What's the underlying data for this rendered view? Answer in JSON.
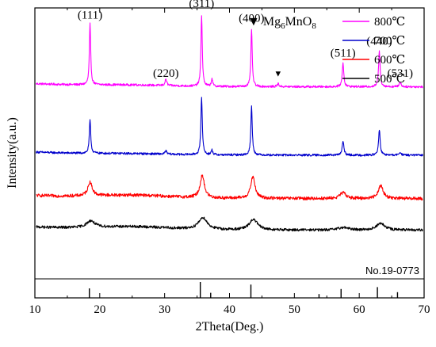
{
  "chart_data": {
    "type": "line",
    "title": "",
    "xlabel": "2Theta(Deg.)",
    "ylabel": "Intensity(a.u.)",
    "xlim": [
      10,
      70
    ],
    "xticks": [
      10,
      20,
      30,
      40,
      50,
      60,
      70
    ],
    "xtick_labels": [
      "10",
      "20",
      "30",
      "40",
      "50",
      "60",
      "70"
    ],
    "grid": false,
    "legend_position": "top-right",
    "series": [
      {
        "name": "800℃",
        "color": "#ff00ff",
        "baseline": 0.7,
        "noise": 0.004,
        "hump": 0.004,
        "peaks": [
          {
            "x": 18.5,
            "height": 0.232,
            "width": 0.12
          },
          {
            "x": 30.2,
            "height": 0.025,
            "width": 0.15
          },
          {
            "x": 35.7,
            "height": 0.272,
            "width": 0.12
          },
          {
            "x": 37.3,
            "height": 0.03,
            "width": 0.12
          },
          {
            "x": 43.4,
            "height": 0.22,
            "width": 0.12
          },
          {
            "x": 47.5,
            "height": 0.012,
            "width": 0.15
          },
          {
            "x": 57.5,
            "height": 0.092,
            "width": 0.14
          },
          {
            "x": 63.1,
            "height": 0.135,
            "width": 0.14
          },
          {
            "x": 66.3,
            "height": 0.02,
            "width": 0.15
          }
        ]
      },
      {
        "name": "700℃",
        "color": "#0000cc",
        "baseline": 0.44,
        "noise": 0.004,
        "hump": 0.003,
        "peaks": [
          {
            "x": 18.5,
            "height": 0.125,
            "width": 0.13
          },
          {
            "x": 30.2,
            "height": 0.012,
            "width": 0.16
          },
          {
            "x": 35.7,
            "height": 0.218,
            "width": 0.13
          },
          {
            "x": 37.3,
            "height": 0.018,
            "width": 0.14
          },
          {
            "x": 43.4,
            "height": 0.185,
            "width": 0.13
          },
          {
            "x": 57.5,
            "height": 0.052,
            "width": 0.16
          },
          {
            "x": 63.1,
            "height": 0.095,
            "width": 0.15
          },
          {
            "x": 66.3,
            "height": 0.012,
            "width": 0.16
          }
        ]
      },
      {
        "name": "600℃",
        "color": "#ff0000",
        "baseline": 0.275,
        "noise": 0.006,
        "hump": 0.01,
        "peaks": [
          {
            "x": 18.5,
            "height": 0.052,
            "width": 0.4
          },
          {
            "x": 35.8,
            "height": 0.085,
            "width": 0.4
          },
          {
            "x": 43.6,
            "height": 0.082,
            "width": 0.4
          },
          {
            "x": 57.5,
            "height": 0.022,
            "width": 0.55
          },
          {
            "x": 63.3,
            "height": 0.05,
            "width": 0.45
          }
        ]
      },
      {
        "name": "500℃",
        "color": "#000000",
        "baseline": 0.155,
        "noise": 0.005,
        "hump": 0.01,
        "peaks": [
          {
            "x": 18.6,
            "height": 0.025,
            "width": 0.75
          },
          {
            "x": 35.9,
            "height": 0.045,
            "width": 0.8
          },
          {
            "x": 43.7,
            "height": 0.04,
            "width": 0.75
          },
          {
            "x": 57.6,
            "height": 0.01,
            "width": 0.9
          },
          {
            "x": 63.3,
            "height": 0.025,
            "width": 0.8
          }
        ]
      }
    ],
    "reference": {
      "label": "No.19-0773",
      "lines": [
        {
          "x": 18.4,
          "height": 0.5
        },
        {
          "x": 35.5,
          "height": 1.0
        },
        {
          "x": 37.1,
          "height": 0.15
        },
        {
          "x": 43.3,
          "height": 0.8
        },
        {
          "x": 53.8,
          "height": 0.05
        },
        {
          "x": 57.2,
          "height": 0.45
        },
        {
          "x": 62.8,
          "height": 0.6
        },
        {
          "x": 65.9,
          "height": 0.2
        }
      ]
    },
    "peak_labels": [
      {
        "text": "(111)",
        "x": 18.5,
        "y": 0.96
      },
      {
        "text": "(220)",
        "x": 30.2,
        "y": 0.738
      },
      {
        "text": "(311)",
        "x": 35.7,
        "y": 1.003
      },
      {
        "text": "(400)",
        "x": 43.4,
        "y": 0.948
      },
      {
        "text": "(511)",
        "x": 57.5,
        "y": 0.815
      },
      {
        "text": "(440)",
        "x": 63.1,
        "y": 0.86
      },
      {
        "text": "(531)",
        "x": 66.3,
        "y": 0.738
      }
    ],
    "impurity_marker": {
      "symbol": "▼",
      "x": 47.5,
      "y": 0.74
    },
    "impurity_legend": {
      "symbol": "▼",
      "base": "Mg",
      "sub1": "6",
      "mid": "MnO",
      "sub2": "8"
    }
  }
}
